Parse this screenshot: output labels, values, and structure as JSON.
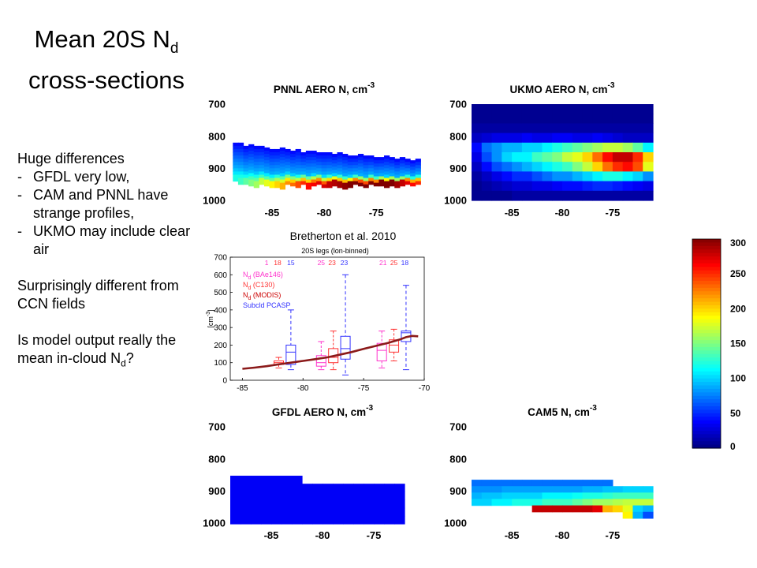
{
  "slide": {
    "title_line1": "Mean 20S N",
    "title_sub": "d",
    "title_line2": "cross-sections",
    "bullets": {
      "heading": "Huge differences",
      "dash": "-",
      "items": [
        "GFDL very low,",
        "CAM and PNNL have strange profiles,",
        "UKMO may include clear air"
      ]
    },
    "note2": "Surprisingly different from CCN fields",
    "note3_pre": "Is model output really the mean in-cloud N",
    "note3_sub": "d",
    "note3_post": "?"
  },
  "colors": {
    "jet_low": "#00008f",
    "jet_high": "#800000",
    "dark_red": "#8b1a1a",
    "pink": "#ff33cc",
    "red": "#ff3333",
    "blue": "#3333ff"
  },
  "chart_data": [
    {
      "id": "pnnl",
      "type": "heatmap",
      "title": "PNNL AERO N, cm",
      "title_exp": "-3",
      "x_ticks": [
        "-85",
        "-80",
        "-75"
      ],
      "x_tick_values": [
        -85,
        -80,
        -75
      ],
      "y_ticks": [
        "700",
        "800",
        "900",
        "1000"
      ],
      "y_tick_values": [
        700,
        800,
        900,
        1000
      ],
      "xlim": [
        -89,
        -71
      ],
      "ylim": [
        1000,
        700
      ],
      "y_inverted": true,
      "x_start": -88.5,
      "x_step": 0.5,
      "top_pressure": [
        820,
        820,
        830,
        825,
        830,
        830,
        835,
        840,
        840,
        835,
        840,
        845,
        840,
        850,
        845,
        845,
        850,
        850,
        850,
        855,
        850,
        855,
        860,
        860,
        855,
        860,
        860,
        865,
        865,
        860,
        865,
        870,
        865,
        870,
        875,
        870
      ],
      "bottom_pressure": [
        940,
        945,
        950,
        950,
        955,
        950,
        955,
        960,
        955,
        960,
        950,
        955,
        960,
        950,
        960,
        955,
        950,
        960,
        955,
        950,
        955,
        960,
        955,
        950,
        955,
        960,
        950,
        955,
        950,
        955,
        950,
        955,
        950,
        945,
        950,
        945
      ],
      "base_value": 90,
      "top_value": 40,
      "bottom_max": [
        120,
        130,
        140,
        150,
        160,
        170,
        180,
        190,
        200,
        210,
        220,
        230,
        240,
        250,
        260,
        265,
        270,
        275,
        280,
        285,
        290,
        295,
        300,
        300,
        300,
        300,
        300,
        300,
        300,
        300,
        300,
        290,
        280,
        270,
        260,
        250
      ]
    },
    {
      "id": "ukmo",
      "type": "heatmap",
      "title": "UKMO AERO N, cm",
      "title_exp": "-3",
      "x_ticks": [
        "-85",
        "-80",
        "-75"
      ],
      "x_tick_values": [
        -85,
        -80,
        -75
      ],
      "y_ticks": [
        "700",
        "800",
        "900",
        "1000"
      ],
      "y_tick_values": [
        700,
        800,
        900,
        1000
      ],
      "xlim": [
        -89,
        -71
      ],
      "ylim": [
        1000,
        700
      ],
      "y_inverted": true,
      "x_start": -88.5,
      "x_step": 1,
      "y_start": 715,
      "y_step": 30,
      "values": [
        [
          5,
          5,
          5,
          5,
          5,
          5,
          5,
          5,
          5,
          5,
          5,
          5,
          5,
          5,
          5,
          5,
          5,
          5
        ],
        [
          5,
          5,
          5,
          5,
          5,
          5,
          5,
          5,
          5,
          5,
          5,
          5,
          5,
          5,
          5,
          5,
          5,
          5
        ],
        [
          10,
          10,
          10,
          10,
          10,
          10,
          10,
          10,
          10,
          10,
          10,
          10,
          10,
          10,
          10,
          10,
          10,
          10
        ],
        [
          20,
          25,
          30,
          30,
          30,
          35,
          30,
          30,
          35,
          35,
          30,
          30,
          35,
          30,
          25,
          20,
          20,
          20
        ],
        [
          40,
          70,
          80,
          90,
          90,
          100,
          100,
          110,
          120,
          130,
          140,
          150,
          160,
          170,
          170,
          160,
          140,
          110
        ],
        [
          30,
          60,
          80,
          100,
          110,
          110,
          130,
          140,
          150,
          170,
          180,
          200,
          230,
          260,
          280,
          280,
          250,
          200
        ],
        [
          20,
          40,
          60,
          70,
          80,
          90,
          100,
          110,
          120,
          130,
          150,
          170,
          200,
          230,
          250,
          260,
          240,
          180
        ],
        [
          10,
          20,
          30,
          40,
          50,
          50,
          60,
          70,
          80,
          80,
          90,
          100,
          110,
          120,
          120,
          110,
          100,
          80
        ],
        [
          5,
          10,
          15,
          20,
          25,
          25,
          30,
          30,
          35,
          40,
          40,
          45,
          50,
          50,
          45,
          40,
          35,
          30
        ],
        [
          5,
          5,
          5,
          5,
          10,
          10,
          10,
          10,
          10,
          10,
          10,
          10,
          10,
          10,
          10,
          10,
          10,
          10
        ]
      ]
    },
    {
      "id": "obs",
      "type": "boxplot",
      "title": "20S legs (lon-binned)",
      "source": "Bretherton et al. 2010",
      "ylabel": "[cm",
      "ylabel_exp": "-3",
      "ylabel_end": "]",
      "x_ticks": [
        "-85",
        "-80",
        "-75",
        "-70"
      ],
      "x_tick_values": [
        -85,
        -80,
        -75,
        -70
      ],
      "y_ticks": [
        "0",
        "100",
        "200",
        "300",
        "400",
        "500",
        "600",
        "700"
      ],
      "y_tick_values": [
        0,
        100,
        200,
        300,
        400,
        500,
        600,
        700
      ],
      "xlim": [
        -86,
        -70
      ],
      "ylim": [
        0,
        700
      ],
      "legend": [
        {
          "label": "N",
          "sub": "d",
          "suffix": " (BAe146)",
          "color": "#ff33cc"
        },
        {
          "label": "N",
          "sub": "d",
          "suffix": " (C130)",
          "color": "#ff3333"
        },
        {
          "label": "N",
          "sub": "d",
          "suffix": " (MODIS)",
          "color": "#cc0000"
        },
        {
          "label": "Subcld PCASP",
          "sub": "",
          "suffix": "",
          "color": "#3333ff"
        }
      ],
      "counts": [
        {
          "text": "1",
          "color": "#ff33cc",
          "x": -83
        },
        {
          "text": "18",
          "color": "#ff3333",
          "x": -82.1
        },
        {
          "text": "15",
          "color": "#3333ff",
          "x": -81
        },
        {
          "text": "25",
          "color": "#ff33cc",
          "x": -78.5
        },
        {
          "text": "23",
          "color": "#ff3333",
          "x": -77.6
        },
        {
          "text": "23",
          "color": "#3333ff",
          "x": -76.6
        },
        {
          "text": "21",
          "color": "#ff33cc",
          "x": -73.4
        },
        {
          "text": "25",
          "color": "#ff3333",
          "x": -72.5
        },
        {
          "text": "18",
          "color": "#3333ff",
          "x": -71.6
        }
      ],
      "boxes": [
        {
          "x": -82,
          "q1": 90,
          "med": 100,
          "q3": 110,
          "lo": 70,
          "hi": 130,
          "color": "#ff3333"
        },
        {
          "x": -81,
          "q1": 90,
          "med": 160,
          "q3": 200,
          "lo": 60,
          "hi": 400,
          "color": "#3333ff"
        },
        {
          "x": -78.5,
          "q1": 80,
          "med": 100,
          "q3": 140,
          "lo": 60,
          "hi": 220,
          "color": "#ff33cc"
        },
        {
          "x": -77.5,
          "q1": 100,
          "med": 130,
          "q3": 180,
          "lo": 60,
          "hi": 280,
          "color": "#ff3333"
        },
        {
          "x": -76.5,
          "q1": 120,
          "med": 180,
          "q3": 250,
          "lo": 30,
          "hi": 600,
          "color": "#3333ff"
        },
        {
          "x": -73.5,
          "q1": 110,
          "med": 170,
          "q3": 210,
          "lo": 70,
          "hi": 280,
          "color": "#ff33cc"
        },
        {
          "x": -72.5,
          "q1": 160,
          "med": 200,
          "q3": 230,
          "lo": 110,
          "hi": 290,
          "color": "#ff3333"
        },
        {
          "x": -71.5,
          "q1": 220,
          "med": 270,
          "q3": 280,
          "lo": 60,
          "hi": 540,
          "color": "#3333ff"
        }
      ],
      "modis_curve": {
        "x": [
          -85,
          -84,
          -83,
          -82,
          -81,
          -80,
          -79,
          -78,
          -77,
          -76,
          -75,
          -74,
          -73,
          -72,
          -71.5,
          -71,
          -70.5
        ],
        "y": [
          65,
          72,
          80,
          90,
          100,
          110,
          120,
          130,
          145,
          160,
          178,
          195,
          212,
          232,
          245,
          252,
          250
        ]
      }
    },
    {
      "id": "gfdl",
      "type": "heatmap",
      "title": "GFDL AERO N, cm",
      "title_exp": "-3",
      "x_ticks": [
        "-85",
        "-80",
        "-75"
      ],
      "x_tick_values": [
        -85,
        -80,
        -75
      ],
      "y_ticks": [
        "700",
        "800",
        "900",
        "1000"
      ],
      "y_tick_values": [
        700,
        800,
        900,
        1000
      ],
      "xlim": [
        -89,
        -71
      ],
      "ylim": [
        1000,
        700
      ],
      "y_inverted": true,
      "x_start": -88.5,
      "x_step": 1,
      "y_start": 865,
      "y_step": 25,
      "values": [
        [
          35,
          35,
          35,
          35,
          35,
          35,
          35,
          -1,
          -1,
          -1,
          -1,
          -1,
          -1,
          -1,
          -1,
          -1,
          -1,
          -1
        ],
        [
          35,
          35,
          35,
          35,
          35,
          35,
          35,
          35,
          35,
          35,
          35,
          35,
          35,
          35,
          35,
          35,
          35,
          -1
        ],
        [
          35,
          35,
          35,
          35,
          35,
          35,
          35,
          35,
          35,
          35,
          35,
          35,
          35,
          35,
          35,
          35,
          35,
          -1
        ],
        [
          35,
          35,
          35,
          35,
          35,
          35,
          35,
          35,
          35,
          35,
          35,
          35,
          35,
          35,
          35,
          35,
          35,
          -1
        ],
        [
          35,
          35,
          35,
          35,
          35,
          35,
          35,
          35,
          35,
          35,
          35,
          35,
          35,
          35,
          35,
          35,
          35,
          -1
        ],
        [
          35,
          35,
          35,
          35,
          35,
          35,
          35,
          35,
          35,
          35,
          35,
          35,
          35,
          35,
          35,
          35,
          35,
          -1
        ]
      ],
      "cell_value": 35
    },
    {
      "id": "cam5",
      "type": "heatmap",
      "title": "CAM5 N, cm",
      "title_exp": "-3",
      "x_ticks": [
        "-85",
        "-80",
        "-75"
      ],
      "x_tick_values": [
        -85,
        -80,
        -75
      ],
      "y_ticks": [
        "700",
        "800",
        "900",
        "1000"
      ],
      "y_tick_values": [
        700,
        800,
        900,
        1000
      ],
      "xlim": [
        -89,
        -71
      ],
      "ylim": [
        1000,
        700
      ],
      "y_inverted": true,
      "x_start": -88.5,
      "x_step": 1,
      "y_start": 875,
      "y_step": 20,
      "values": [
        [
          70,
          70,
          70,
          70,
          70,
          70,
          70,
          70,
          70,
          70,
          70,
          70,
          70,
          70,
          -1,
          -1,
          -1,
          -1
        ],
        [
          80,
          80,
          80,
          85,
          85,
          85,
          85,
          85,
          85,
          85,
          85,
          90,
          90,
          95,
          95,
          100,
          100,
          100
        ],
        [
          90,
          95,
          95,
          100,
          100,
          100,
          100,
          110,
          110,
          110,
          115,
          120,
          120,
          125,
          130,
          130,
          130,
          130
        ],
        [
          100,
          100,
          110,
          110,
          120,
          120,
          120,
          130,
          130,
          130,
          140,
          150,
          160,
          160,
          165,
          170,
          170,
          170
        ],
        [
          -1,
          -1,
          -1,
          -1,
          -1,
          -1,
          280,
          280,
          280,
          280,
          280,
          280,
          270,
          210,
          200,
          180,
          100,
          90
        ],
        [
          -1,
          -1,
          -1,
          -1,
          -1,
          -1,
          -1,
          -1,
          -1,
          -1,
          -1,
          -1,
          -1,
          -1,
          -1,
          190,
          90,
          60
        ]
      ]
    }
  ],
  "colorbar": {
    "ticks": [
      "300",
      "250",
      "200",
      "150",
      "100",
      "50",
      "0"
    ],
    "tick_values": [
      300,
      250,
      200,
      150,
      100,
      50,
      0
    ],
    "min": 0,
    "max": 300
  }
}
